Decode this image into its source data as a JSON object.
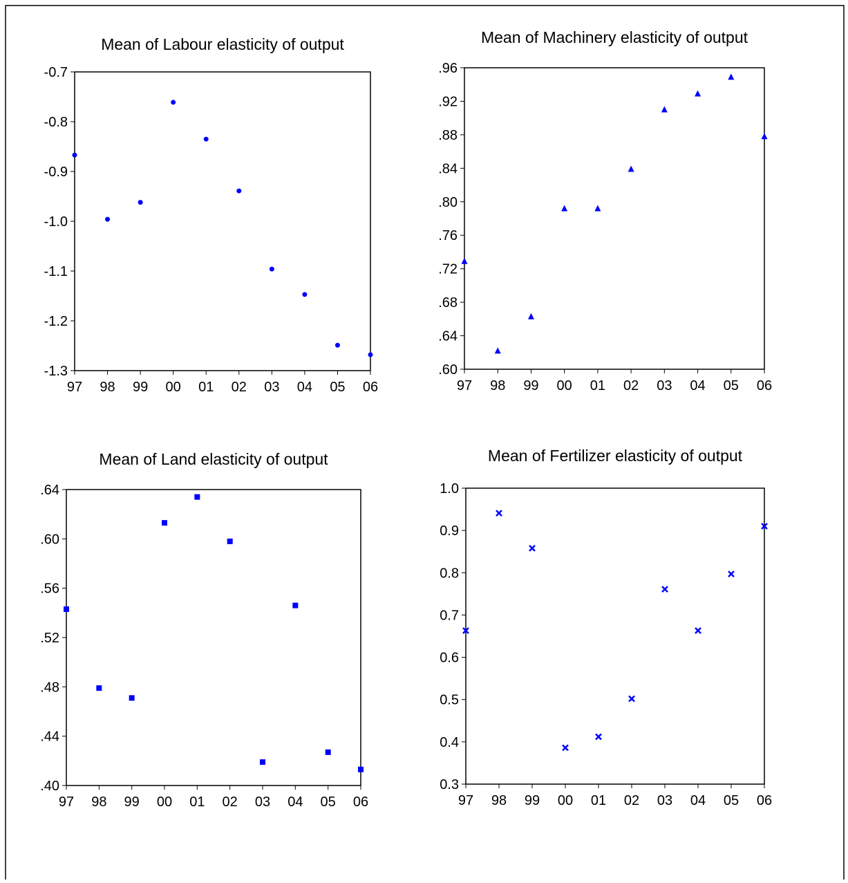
{
  "chart_data": [
    {
      "type": "scatter",
      "title": "Mean of Labour elasticity of output",
      "marker": "circle",
      "color": "#0000ff",
      "categories": [
        "97",
        "98",
        "99",
        "00",
        "01",
        "02",
        "03",
        "04",
        "05",
        "06"
      ],
      "values": [
        -0.867,
        -0.996,
        -0.962,
        -0.761,
        -0.835,
        -0.939,
        -1.096,
        -1.147,
        -1.249,
        -1.268
      ],
      "ylim": [
        -1.3,
        -0.7
      ],
      "yticks": [
        -0.7,
        -0.8,
        -0.9,
        {
          "value": -1.0,
          "label": "-1.0"
        },
        -1.1,
        -1.2,
        -1.3
      ]
    },
    {
      "type": "scatter",
      "title": "Mean of Machinery elasticity of output",
      "marker": "triangle",
      "color": "#0000ff",
      "categories": [
        "97",
        "98",
        "99",
        "00",
        "01",
        "02",
        "03",
        "04",
        "05",
        "06"
      ],
      "values": [
        0.729,
        0.622,
        0.663,
        0.792,
        0.792,
        0.839,
        0.91,
        0.929,
        0.949,
        0.878
      ],
      "ylim": [
        0.6,
        0.96
      ],
      "yticks": [
        {
          "value": 0.96,
          "label": ".96"
        },
        {
          "value": 0.92,
          "label": ".92"
        },
        {
          "value": 0.88,
          "label": ".88"
        },
        {
          "value": 0.84,
          "label": ".84"
        },
        {
          "value": 0.8,
          "label": ".80"
        },
        {
          "value": 0.76,
          "label": ".76"
        },
        {
          "value": 0.72,
          "label": ".72"
        },
        {
          "value": 0.68,
          "label": ".68"
        },
        {
          "value": 0.64,
          "label": ".64"
        },
        {
          "value": 0.6,
          "label": ".60"
        }
      ]
    },
    {
      "type": "scatter",
      "title": "Mean of Land elasticity of output",
      "marker": "square",
      "color": "#0000ff",
      "categories": [
        "97",
        "98",
        "99",
        "00",
        "01",
        "02",
        "03",
        "04",
        "05",
        "06"
      ],
      "values": [
        0.543,
        0.479,
        0.471,
        0.613,
        0.634,
        0.598,
        0.419,
        0.546,
        0.427,
        0.413
      ],
      "ylim": [
        0.4,
        0.64
      ],
      "yticks": [
        {
          "value": 0.64,
          "label": ".64"
        },
        {
          "value": 0.6,
          "label": ".60"
        },
        {
          "value": 0.56,
          "label": ".56"
        },
        {
          "value": 0.52,
          "label": ".52"
        },
        {
          "value": 0.48,
          "label": ".48"
        },
        {
          "value": 0.44,
          "label": ".44"
        },
        {
          "value": 0.4,
          "label": ".40"
        }
      ]
    },
    {
      "type": "scatter",
      "title": "Mean of Fertilizer elasticity of output",
      "marker": "x",
      "color": "#0000ff",
      "categories": [
        "97",
        "98",
        "99",
        "00",
        "01",
        "02",
        "03",
        "04",
        "05",
        "06"
      ],
      "values": [
        0.663,
        0.941,
        0.858,
        0.386,
        0.412,
        0.502,
        0.761,
        0.663,
        0.797,
        0.91
      ],
      "ylim": [
        0.3,
        1.0
      ],
      "yticks": [
        {
          "value": 1.0,
          "label": "1.0"
        },
        0.9,
        0.8,
        0.7,
        0.6,
        0.5,
        0.4,
        0.3
      ]
    }
  ]
}
